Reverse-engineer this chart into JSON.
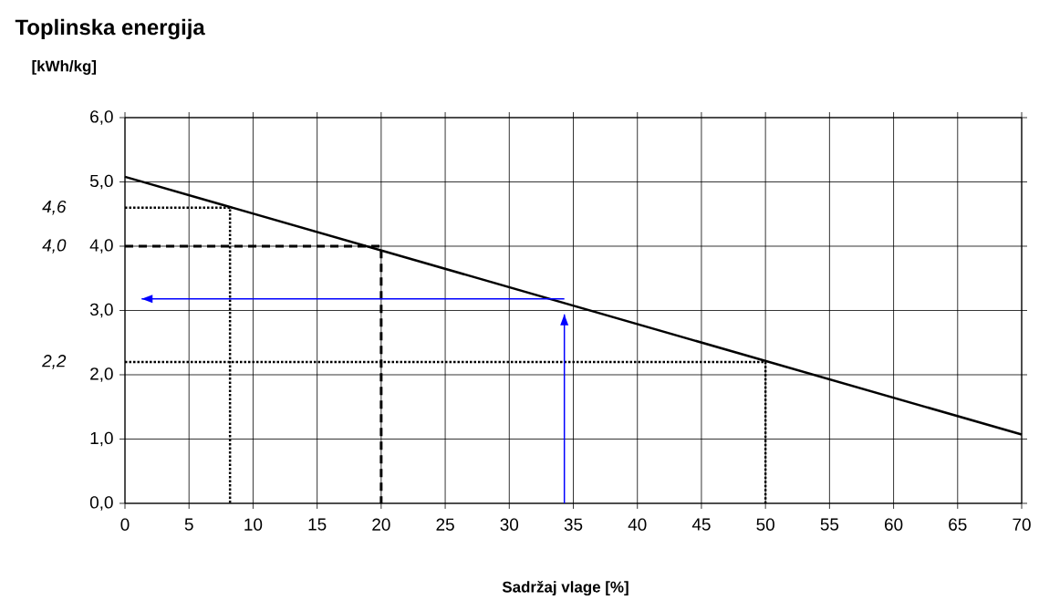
{
  "chart_data": {
    "type": "line",
    "title": "Toplinska energija",
    "ylabel": "[kWh/kg]",
    "xlabel": "Sadržaj vlage [%]",
    "xlim": [
      0,
      70
    ],
    "ylim": [
      0,
      6
    ],
    "xticks": [
      0,
      5,
      10,
      15,
      20,
      25,
      30,
      35,
      40,
      45,
      50,
      55,
      60,
      65,
      70
    ],
    "yticks": [
      {
        "value": 0,
        "label": "0,0"
      },
      {
        "value": 1,
        "label": "1,0"
      },
      {
        "value": 2,
        "label": "2,0"
      },
      {
        "value": 3,
        "label": "3,0"
      },
      {
        "value": 4,
        "label": "4,0"
      },
      {
        "value": 5,
        "label": "5,0"
      },
      {
        "value": 6,
        "label": "6,0"
      }
    ],
    "grid": true,
    "marker": "none",
    "series": [
      {
        "color": "#000000",
        "line_style": "solid",
        "x": [
          0,
          70
        ],
        "values": [
          5.08,
          1.07
        ]
      },
      {
        "color": "#000000",
        "line_style": "dotted",
        "x": [
          0,
          8.2,
          8.2
        ],
        "values": [
          4.6,
          4.6,
          0
        ]
      },
      {
        "color": "#000000",
        "line_style": "dashed",
        "x": [
          0,
          20,
          20
        ],
        "values": [
          4.0,
          4.0,
          0
        ]
      },
      {
        "color": "#000000",
        "line_style": "dotted",
        "x": [
          0,
          50,
          50
        ],
        "values": [
          2.2,
          2.2,
          0
        ]
      },
      {
        "color": "#0000ff",
        "line_style": "solid",
        "x": [
          34.3,
          34.3
        ],
        "values": [
          0,
          2.94
        ]
      },
      {
        "color": "#0000ff",
        "line_style": "solid",
        "x": [
          34.3,
          1.3
        ],
        "values": [
          3.18,
          3.18
        ]
      }
    ],
    "annotations": [
      "4,6",
      "4,0",
      "2,2"
    ]
  }
}
